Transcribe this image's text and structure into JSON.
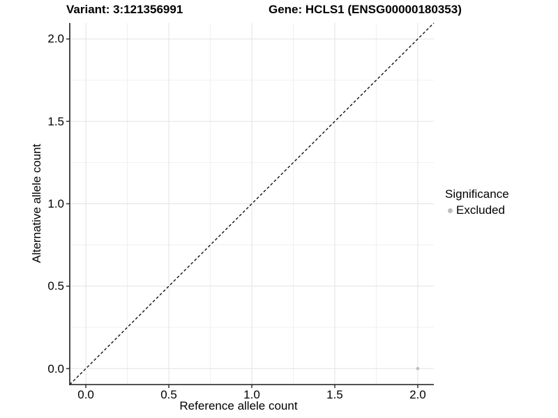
{
  "header": {
    "variant_title": "Variant: 3:121356991",
    "gene_title": "Gene: HCLS1 (ENSG00000180353)"
  },
  "chart_data": {
    "type": "scatter",
    "title": "Variant: 3:121356991 | Gene: HCLS1 (ENSG00000180353)",
    "xlabel": "Reference allele count",
    "ylabel": "Alternative allele count",
    "xlim": [
      -0.097,
      2.097
    ],
    "ylim": [
      -0.097,
      2.097
    ],
    "x_ticks": [
      {
        "value": 0.0,
        "label": "0.0"
      },
      {
        "value": 0.5,
        "label": "0.5"
      },
      {
        "value": 1.0,
        "label": "1.0"
      },
      {
        "value": 1.5,
        "label": "1.5"
      },
      {
        "value": 2.0,
        "label": "2.0"
      }
    ],
    "y_ticks": [
      {
        "value": 0.0,
        "label": "0.0"
      },
      {
        "value": 0.5,
        "label": "0.5"
      },
      {
        "value": 1.0,
        "label": "1.0"
      },
      {
        "value": 1.5,
        "label": "1.5"
      },
      {
        "value": 2.0,
        "label": "2.0"
      }
    ],
    "x_minor": [
      0.25,
      0.75,
      1.25,
      1.75
    ],
    "y_minor": [
      0.25,
      0.75,
      1.25,
      1.75
    ],
    "grid": {
      "major_color": "#e2e2e2",
      "minor_color": "#f0f0f0",
      "grid_on": true
    },
    "axis": {
      "line_color": "#1a1a1a",
      "tick_color": "#333333"
    },
    "identity_line": {
      "style": "dashed",
      "color": "#111111",
      "slope": 1,
      "intercept": 0
    },
    "series": [
      {
        "name": "Excluded",
        "color": "#bdbdbd",
        "points": [
          {
            "x": 2.0,
            "y": 0.0
          }
        ]
      }
    ],
    "legend": {
      "title": "Significance",
      "position": "right",
      "entries": [
        {
          "label": "Excluded",
          "color": "#bdbdbd"
        }
      ]
    }
  }
}
